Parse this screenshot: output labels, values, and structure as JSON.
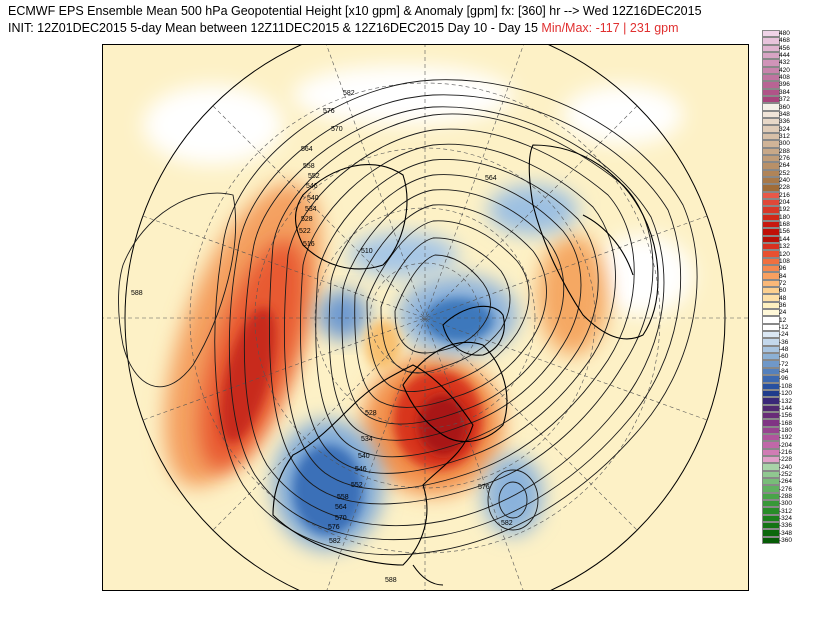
{
  "header": {
    "line1": "ECMWF EPS Ensemble Mean 500 hPa Geopotential Height [x10 gpm] & Anomaly [gpm] fx: [360] hr --> Wed 12Z16DEC2015",
    "line2_main": "INIT: 12Z01DEC2015 5-day Mean between 12Z11DEC2015 & 12Z16DEC2015    Day 10 - Day 15",
    "line2_minmax": "Min/Max:   -117  |  231 gpm"
  },
  "colors": {
    "strong_positive": "#c8201c",
    "positive": "#f08040",
    "weak_positive": "#fbe3a0",
    "weak_negative": "#b8d4ec",
    "negative": "#4a86c4",
    "strong_negative": "#1f3f8a"
  },
  "colorbar": {
    "labels": [
      "480",
      "468",
      "456",
      "444",
      "432",
      "420",
      "408",
      "396",
      "384",
      "372",
      "360",
      "348",
      "336",
      "324",
      "312",
      "300",
      "288",
      "276",
      "264",
      "252",
      "240",
      "228",
      "216",
      "204",
      "192",
      "180",
      "168",
      "156",
      "144",
      "132",
      "120",
      "108",
      "96",
      "84",
      "72",
      "60",
      "48",
      "36",
      "24",
      "12",
      "-12",
      "-24",
      "-36",
      "-48",
      "-60",
      "-72",
      "-84",
      "-96",
      "-108",
      "-120",
      "-132",
      "-144",
      "-156",
      "-168",
      "-180",
      "-192",
      "-204",
      "-216",
      "-228",
      "-240",
      "-252",
      "-264",
      "-276",
      "-288",
      "-300",
      "-312",
      "-324",
      "-336",
      "-348",
      "-360"
    ],
    "colors": [
      "#f0d4e8",
      "#e8c4dc",
      "#e0b4d0",
      "#d8a4c4",
      "#d094b8",
      "#c884ac",
      "#c074a0",
      "#b86494",
      "#b05488",
      "#a8447c",
      "#f5f0e8",
      "#f0e4d8",
      "#e8d8c8",
      "#e0ccb8",
      "#d8c0a8",
      "#d0b498",
      "#c8a888",
      "#c09c78",
      "#b89068",
      "#b08458",
      "#a87848",
      "#a06c38",
      "#e85848",
      "#e04838",
      "#d83828",
      "#d02818",
      "#c81810",
      "#c01008",
      "#b81008",
      "#d83020",
      "#e85030",
      "#f07040",
      "#f58850",
      "#f8a060",
      "#fab878",
      "#fcd090",
      "#fde0a8",
      "#fef0c0",
      "#fff8d8",
      "#ffffff",
      "#ffffff",
      "#dce8f4",
      "#c4d8ec",
      "#a8c4e0",
      "#8cb0d4",
      "#7098c8",
      "#5480bc",
      "#3c68b0",
      "#2850a0",
      "#203c8c",
      "#3a2878",
      "#502870",
      "#682c78",
      "#803484",
      "#984490",
      "#b0549c",
      "#c068a8",
      "#d07cb4",
      "#e0a0c8",
      "#a8d4a8",
      "#90c890",
      "#78bc78",
      "#60b060",
      "#48a448",
      "#389838",
      "#288c28",
      "#1c801c",
      "#147414",
      "#0c680c",
      "#065c06"
    ]
  },
  "contour_labels": [
    "582",
    "576",
    "570",
    "564",
    "558",
    "552",
    "546",
    "540",
    "534",
    "528",
    "522",
    "516",
    "510",
    "588",
    "564",
    "582",
    "576",
    "528",
    "534",
    "540",
    "546",
    "552",
    "558",
    "564",
    "570",
    "576",
    "582",
    "588"
  ]
}
